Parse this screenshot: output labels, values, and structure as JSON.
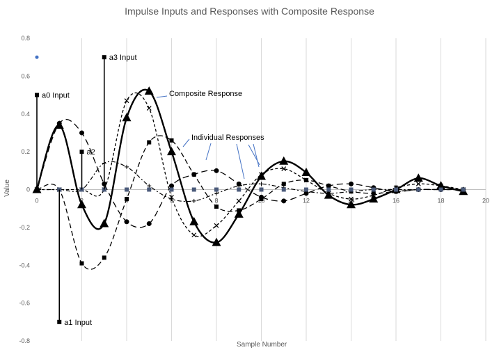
{
  "chart_data": {
    "type": "line",
    "title": "Impulse Inputs and Responses with Composite Response",
    "xlabel": "Sample Number",
    "ylabel": "Value",
    "xlim": [
      0,
      20
    ],
    "ylim": [
      -0.8,
      0.8
    ],
    "x_ticks": [
      "0",
      "2",
      "4",
      "6",
      "8",
      "10",
      "12",
      "14",
      "16",
      "18",
      "20"
    ],
    "y_ticks": [
      "0.8",
      "0.6",
      "0.4",
      "0.2",
      "0",
      "-0.2",
      "-0.4",
      "-0.6",
      "-0.8"
    ],
    "grid": "vertical",
    "impulses": [
      {
        "x": 0,
        "value": 0.5,
        "label": "a0 Input"
      },
      {
        "x": 1,
        "value": -0.7,
        "label": "a1 Input"
      },
      {
        "x": 2,
        "value": 0.2,
        "label": "a2"
      },
      {
        "x": 3,
        "value": 0.7,
        "label": "a3 Input"
      }
    ],
    "stray_point": {
      "x": 0,
      "value": 0.7
    },
    "series": [
      {
        "style": "composite",
        "x": [
          0,
          1,
          2,
          3,
          4,
          5,
          6,
          7,
          8,
          9,
          10,
          11,
          12,
          13,
          14,
          15,
          16,
          17,
          18,
          19
        ],
        "values": [
          0,
          0.34,
          -0.08,
          -0.18,
          0.38,
          0.52,
          0.2,
          -0.17,
          -0.28,
          -0.13,
          0.07,
          0.15,
          0.09,
          -0.03,
          -0.08,
          -0.05,
          0,
          0.06,
          0.02,
          -0.01
        ]
      },
      {
        "style": "long-dash-circle",
        "x": [
          0,
          1,
          2,
          3,
          4,
          5,
          6,
          7,
          8,
          9,
          10,
          11,
          12,
          13,
          14,
          15,
          16,
          17,
          18,
          19
        ],
        "values": [
          0,
          0.35,
          0.3,
          0.03,
          -0.17,
          -0.18,
          0.02,
          0.08,
          0.1,
          0.03,
          -0.04,
          -0.06,
          -0.02,
          0.02,
          0.03,
          0.01,
          -0.01,
          0,
          0,
          0
        ]
      },
      {
        "style": "dash-square",
        "x": [
          0,
          1,
          2,
          3,
          4,
          5,
          6,
          7,
          8,
          9,
          10,
          11,
          12,
          13,
          14,
          15,
          16,
          17,
          18,
          19
        ],
        "values": [
          0,
          0,
          -0.39,
          -0.36,
          -0.05,
          0.25,
          0.26,
          0.08,
          -0.09,
          -0.11,
          -0.05,
          0.03,
          0.05,
          0.02,
          -0.01,
          -0.02,
          -0.01,
          0,
          0,
          0
        ]
      },
      {
        "style": "dashdot-plus",
        "x": [
          0,
          1,
          2,
          3,
          4,
          5,
          6,
          7,
          8,
          9,
          10,
          11,
          12,
          13,
          14,
          15,
          16,
          17,
          18,
          19
        ],
        "values": [
          0,
          0,
          0,
          0.14,
          0.12,
          0.02,
          -0.05,
          -0.06,
          -0.02,
          0.02,
          0.03,
          0.01,
          -0.01,
          -0.02,
          -0.01,
          0,
          0,
          0,
          0,
          0
        ]
      },
      {
        "style": "short-dash-x",
        "x": [
          0,
          1,
          2,
          3,
          4,
          5,
          6,
          7,
          8,
          9,
          10,
          11,
          12,
          13,
          14,
          15,
          16,
          17,
          18,
          19
        ],
        "values": [
          0,
          0,
          0,
          0,
          0.47,
          0.43,
          -0.04,
          -0.24,
          -0.19,
          -0.06,
          0.08,
          0.11,
          0.05,
          -0.02,
          -0.05,
          -0.03,
          0.01,
          0.03,
          0.02,
          0
        ]
      }
    ],
    "annotations": [
      {
        "label": "Composite Response"
      },
      {
        "label": "Individual Responses"
      }
    ]
  }
}
